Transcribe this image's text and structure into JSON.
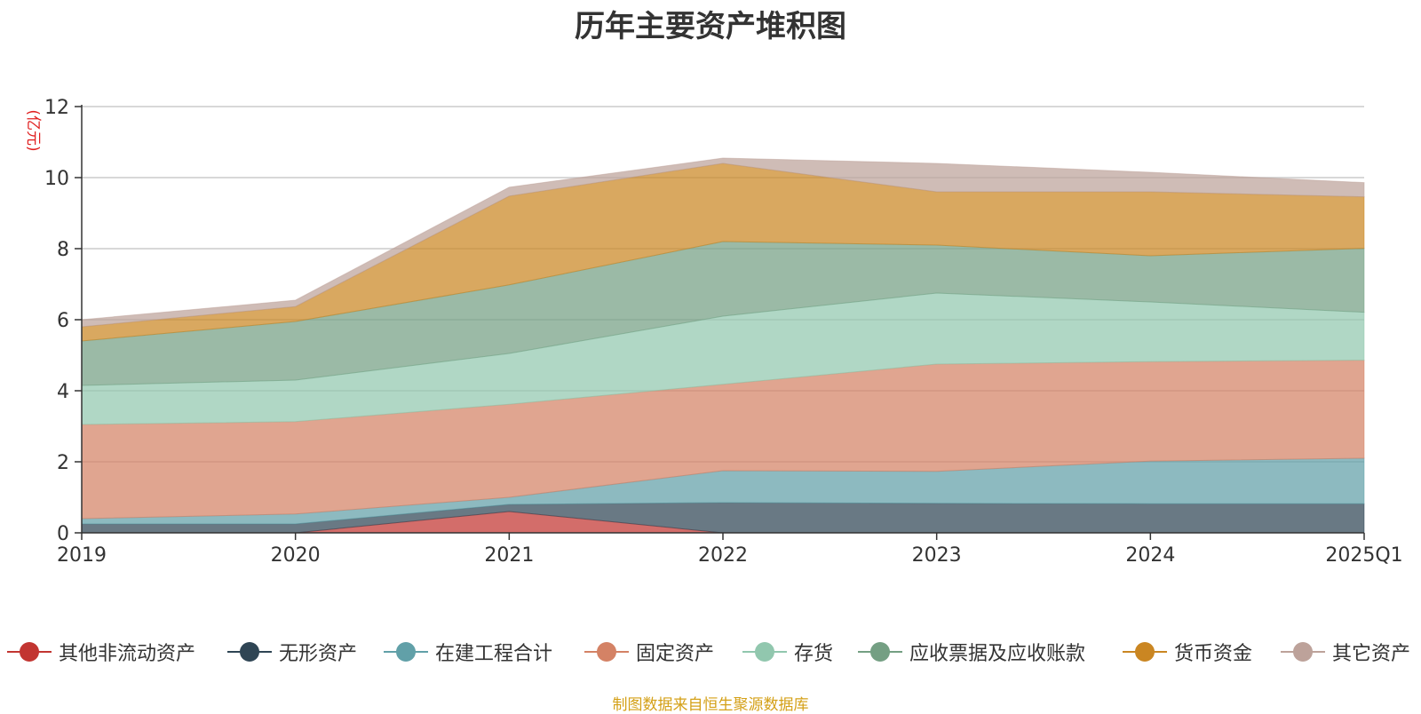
{
  "chart_data": {
    "type": "area",
    "stacked": true,
    "title": "历年主要资产堆积图",
    "ylabel": "(亿元)",
    "ylim": [
      0,
      12
    ],
    "yticks": [
      0,
      2,
      4,
      6,
      8,
      10,
      12
    ],
    "categories": [
      "2019",
      "2020",
      "2021",
      "2022",
      "2023",
      "2024",
      "2025Q1"
    ],
    "series": [
      {
        "name": "其他非流动资产",
        "color": "#c23531",
        "values": [
          0,
          0,
          0.6,
          0,
          0,
          0,
          0
        ]
      },
      {
        "name": "无形资产",
        "color": "#2f4554",
        "values": [
          0.25,
          0.25,
          0.2,
          0.85,
          0.83,
          0.82,
          0.82
        ]
      },
      {
        "name": "在建工程合计",
        "color": "#61a0a8",
        "values": [
          0.15,
          0.28,
          0.2,
          0.9,
          0.9,
          1.2,
          1.28
        ]
      },
      {
        "name": "固定资产",
        "color": "#d48265",
        "values": [
          2.65,
          2.6,
          2.62,
          2.43,
          3.02,
          2.8,
          2.76
        ]
      },
      {
        "name": "存货",
        "color": "#91c7ae",
        "values": [
          1.1,
          1.17,
          1.43,
          1.92,
          2.0,
          1.68,
          1.35
        ]
      },
      {
        "name": "应收票据及应收账款",
        "color": "#749f83",
        "values": [
          1.25,
          1.65,
          1.93,
          2.1,
          1.35,
          1.3,
          1.8
        ]
      },
      {
        "name": "货币资金",
        "color": "#ca8622",
        "values": [
          0.4,
          0.42,
          2.5,
          2.2,
          1.5,
          1.8,
          1.45
        ]
      },
      {
        "name": "其它资产",
        "color": "#bda29a",
        "values": [
          0.2,
          0.18,
          0.25,
          0.15,
          0.8,
          0.55,
          0.4
        ]
      }
    ],
    "legend_position": "bottom",
    "grid": true
  },
  "source_note": "制图数据来自恒生聚源数据库"
}
